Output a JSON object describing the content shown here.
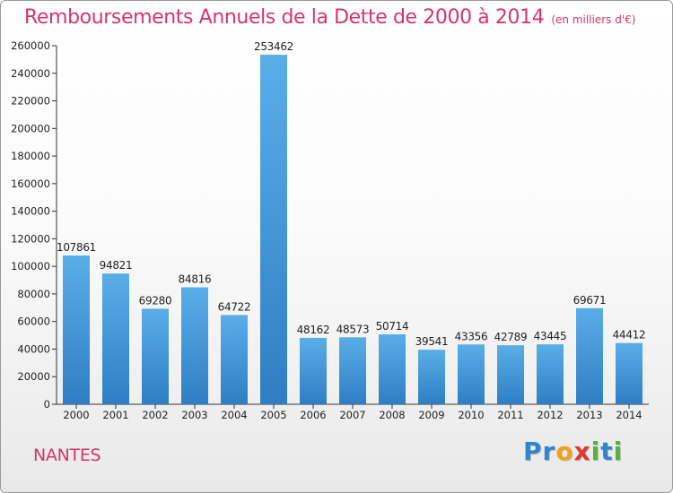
{
  "header": {
    "title": "Remboursements Annuels de la Dette de 2000 à 2014",
    "unit": "(en milliers d'€)"
  },
  "footer": {
    "city": "NANTES",
    "logo_letters": [
      {
        "ch": "P",
        "color": "#2f86d0"
      },
      {
        "ch": "r",
        "color": "#2f86d0"
      },
      {
        "ch": "o",
        "color": "#f2a21a"
      },
      {
        "ch": "x",
        "color": "#e03a2e"
      },
      {
        "ch": "i",
        "color": "#56b33a"
      },
      {
        "ch": "t",
        "color": "#2f86d0"
      },
      {
        "ch": "i",
        "color": "#56b33a"
      }
    ]
  },
  "chart_data": {
    "type": "bar",
    "title": "Remboursements Annuels de la Dette de 2000 à 2014",
    "subtitle": "(en milliers d'€)",
    "categories": [
      "2000",
      "2001",
      "2002",
      "2003",
      "2004",
      "2005",
      "2006",
      "2007",
      "2008",
      "2009",
      "2010",
      "2011",
      "2012",
      "2013",
      "2014"
    ],
    "values": [
      107861,
      94821,
      69280,
      84816,
      64722,
      253462,
      48162,
      48573,
      50714,
      39541,
      43356,
      42789,
      43445,
      69671,
      44412
    ],
    "ylim": [
      0,
      260000
    ],
    "yticks": [
      0,
      20000,
      40000,
      60000,
      80000,
      100000,
      120000,
      140000,
      160000,
      180000,
      200000,
      220000,
      240000,
      260000
    ],
    "grid": false,
    "bar_color_top": "#5aaee8",
    "bar_color_bottom": "#2f7ec4"
  }
}
